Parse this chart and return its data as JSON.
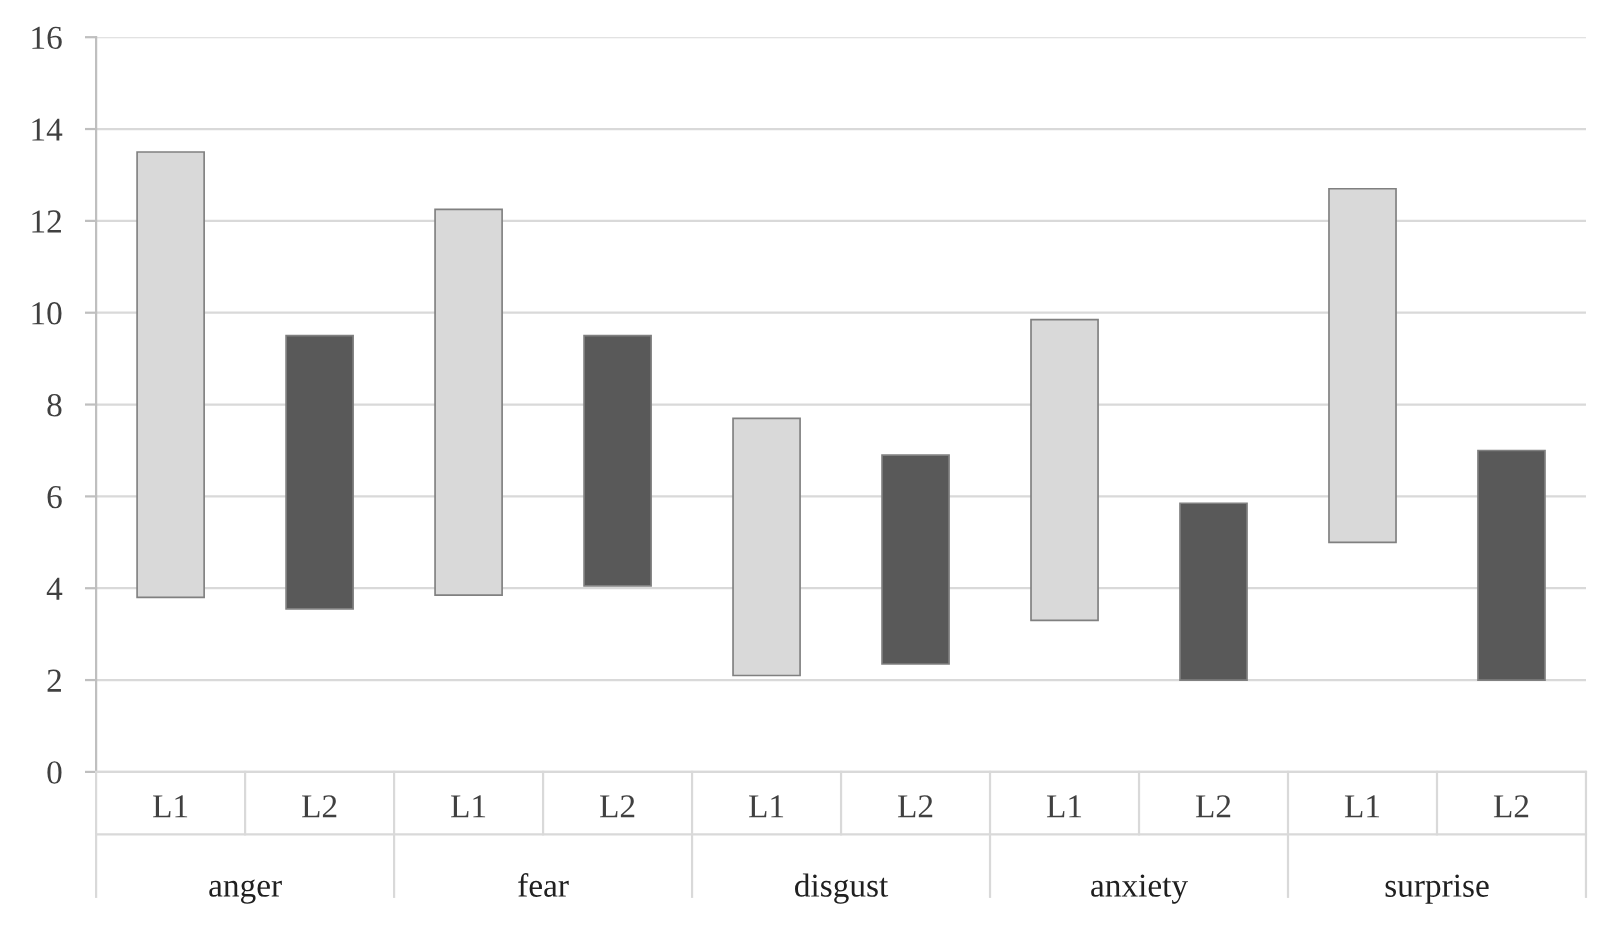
{
  "chart_data": {
    "type": "bar",
    "categories": [
      "L1",
      "L2",
      "L1",
      "L2",
      "L1",
      "L2",
      "L1",
      "L2",
      "L1",
      "L2"
    ],
    "base": [
      3.8,
      3.55,
      3.85,
      4.05,
      2.1,
      2.35,
      3.3,
      2.0,
      5.0,
      2.0
    ],
    "values": [
      9.7,
      5.95,
      8.4,
      5.45,
      5.6,
      4.55,
      6.55,
      3.85,
      7.7,
      5.0
    ],
    "colors": [
      "#d9d9d9",
      "#595959",
      "#d9d9d9",
      "#595959",
      "#d9d9d9",
      "#595959",
      "#d9d9d9",
      "#595959",
      "#d9d9d9",
      "#595959"
    ],
    "ylim": [
      0,
      16
    ],
    "yticks": [
      0,
      2,
      4,
      6,
      8,
      10,
      12,
      14,
      16
    ],
    "grid": "y",
    "annotations": [
      "anger",
      "fear",
      "disgust",
      "anxiety",
      "surprise"
    ]
  }
}
